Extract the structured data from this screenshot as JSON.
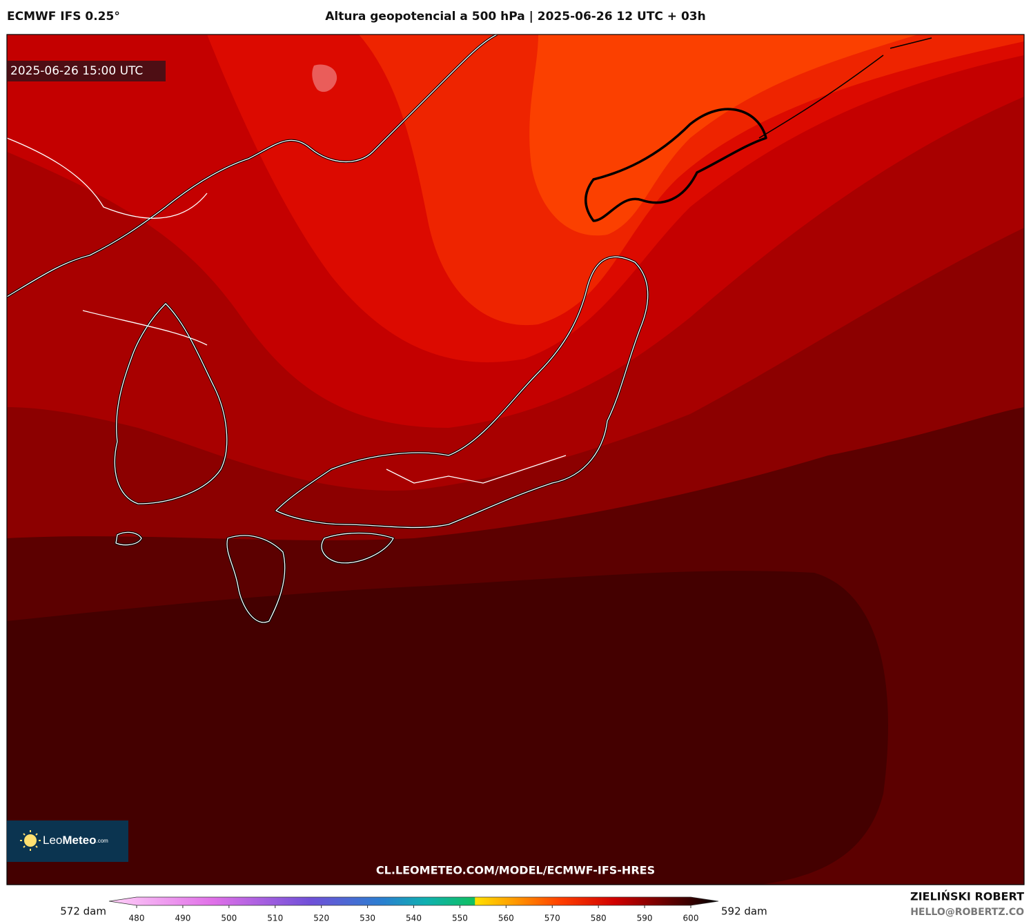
{
  "header": {
    "model": "ECMWF IFS 0.25°",
    "title": "Altura geopotencial a 500 hPa | 2025-06-26 12 UTC + 03h"
  },
  "map": {
    "valid_time": "2025-06-26 15:00 UTC",
    "logo": {
      "brand_light": "Leo",
      "brand_bold": "Meteo",
      "suffix": ".com"
    },
    "url": "CL.LEOMETEO.COM/MODEL/ECMWF-IFS-HRES"
  },
  "colorbar": {
    "min_label": "572 dam",
    "max_label": "592 dam",
    "ticks": [
      480,
      490,
      500,
      510,
      520,
      530,
      540,
      550,
      560,
      570,
      580,
      590,
      600
    ],
    "range": [
      480,
      600
    ]
  },
  "footer": {
    "author": "ZIELIŃSKI ROBERT",
    "email": "HELLO@ROBERTZ.CO"
  }
}
